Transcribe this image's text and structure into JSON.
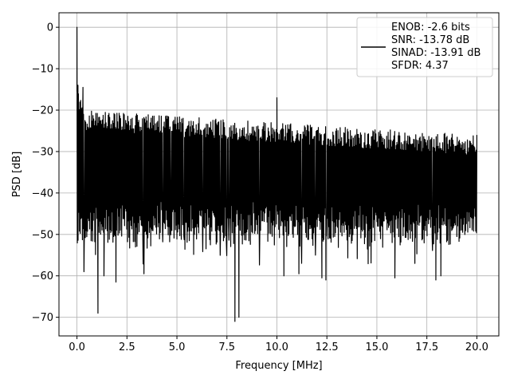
{
  "chart_data": {
    "type": "line",
    "title": "",
    "xlabel": "Frequency [MHz]",
    "ylabel": "PSD [dB]",
    "xlim": [
      -0.9,
      21.1
    ],
    "ylim": [
      -74.5,
      3.5
    ],
    "xticks": [
      0.0,
      2.5,
      5.0,
      7.5,
      10.0,
      12.5,
      15.0,
      17.5,
      20.0
    ],
    "xtick_labels": [
      "0.0",
      "2.5",
      "5.0",
      "7.5",
      "10.0",
      "12.5",
      "15.0",
      "17.5",
      "20.0"
    ],
    "yticks": [
      0,
      -10,
      -20,
      -30,
      -40,
      -50,
      -60,
      -70
    ],
    "ytick_labels": [
      "0",
      "−10",
      "−20",
      "−30",
      "−40",
      "−50",
      "−60",
      "−70"
    ],
    "grid": true,
    "legend_position": "top-right",
    "series": [
      {
        "name": "ENOB: -2.6 bits",
        "color": "#000000",
        "description": "Noisy power spectral density from 0 to 20 MHz: peak near 0 dB at DC, upper envelope falling from about -14 dB to about -26 dB, lower envelope mostly between -40 and -55 dB with dips to about -71 dB.",
        "x_range": [
          0.0,
          20.0
        ],
        "key_points": [
          {
            "x": 0.0,
            "y": 0.0
          },
          {
            "x": 0.05,
            "y": -14.0
          },
          {
            "x": 0.1,
            "y": -38.0
          },
          {
            "x": 0.3,
            "y": -14.5
          },
          {
            "x": 0.35,
            "y": -59.0
          },
          {
            "x": 1.05,
            "y": -69.0
          },
          {
            "x": 1.35,
            "y": -60.0
          },
          {
            "x": 1.95,
            "y": -61.5
          },
          {
            "x": 3.35,
            "y": -59.5
          },
          {
            "x": 7.9,
            "y": -71.0
          },
          {
            "x": 8.1,
            "y": -70.0
          },
          {
            "x": 10.0,
            "y": -17.0
          },
          {
            "x": 10.35,
            "y": -60.0
          },
          {
            "x": 11.1,
            "y": -59.5
          },
          {
            "x": 12.25,
            "y": -60.5
          },
          {
            "x": 12.45,
            "y": -61.0
          },
          {
            "x": 15.9,
            "y": -60.5
          },
          {
            "x": 16.9,
            "y": -57.0
          },
          {
            "x": 17.95,
            "y": -61.0
          },
          {
            "x": 18.2,
            "y": -60.0
          },
          {
            "x": 20.0,
            "y": -26.0
          }
        ]
      }
    ],
    "legend_lines": [
      "ENOB: -2.6 bits",
      "SNR: -13.78 dB",
      "SINAD: -13.91 dB",
      "SFDR: 4.37"
    ]
  }
}
